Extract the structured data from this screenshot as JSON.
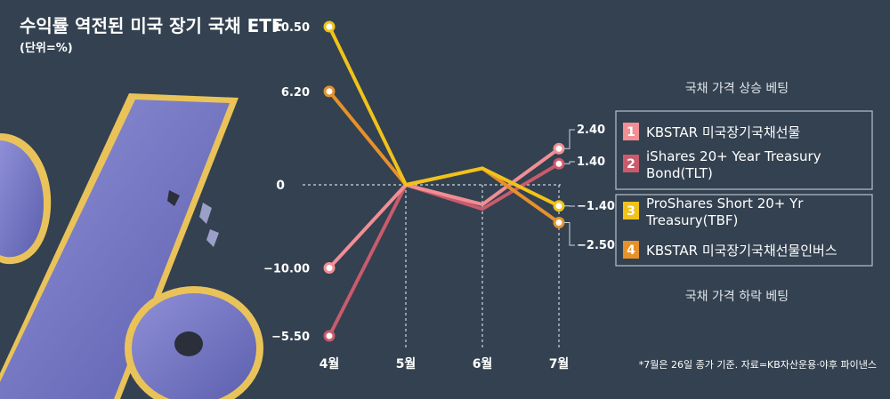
{
  "title": "수익률 역전된 미국 장기 국채 ETF",
  "unit": "(단위=%)",
  "note": "*7월은 26일 종가 기준. 자료=KB자산운용·야후 파이낸스",
  "legend": {
    "up_label": "국채 가격 상승 베팅",
    "down_label": "국채 가격 하락 베팅"
  },
  "colors": {
    "background": "#334150",
    "series_1": "#f08f94",
    "series_2": "#c95b6c",
    "series_3": "#f1c21a",
    "series_4": "#e6912b"
  },
  "chart_data": {
    "type": "line",
    "categories": [
      "4월",
      "5월",
      "6월",
      "7월"
    ],
    "zero_label": "0",
    "y_labels": [
      "10.50",
      "6.20",
      "−5.50",
      "−10.00"
    ],
    "end_labels": [
      "2.40",
      "1.40",
      "−1.40",
      "−2.50"
    ],
    "ylim": [
      -10,
      10.5
    ],
    "series": [
      {
        "num": "1",
        "name": "KBSTAR 미국장기국채선물",
        "name_lines": [
          "KBSTAR 미국장기국채선물"
        ],
        "values": [
          -5.5,
          0,
          -1.3,
          2.4
        ]
      },
      {
        "num": "2",
        "name": "iShares 20+ Year Treasury Bond(TLT)",
        "name_lines": [
          "iShares 20+ Year Treasury",
          "Bond(TLT)"
        ],
        "values": [
          -10.0,
          0,
          -1.6,
          1.4
        ]
      },
      {
        "num": "3",
        "name": "ProShares Short 20+ Yr Treasury(TBF)",
        "name_lines": [
          "ProShares Short 20+ Yr",
          "Treasury(TBF)"
        ],
        "values": [
          10.5,
          0,
          1.1,
          -1.4
        ]
      },
      {
        "num": "4",
        "name": "KBSTAR 미국장기국채선물인버스",
        "name_lines": [
          "KBSTAR 미국장기국채선물인버스"
        ],
        "values": [
          6.2,
          0,
          1.1,
          -2.5
        ]
      }
    ]
  }
}
